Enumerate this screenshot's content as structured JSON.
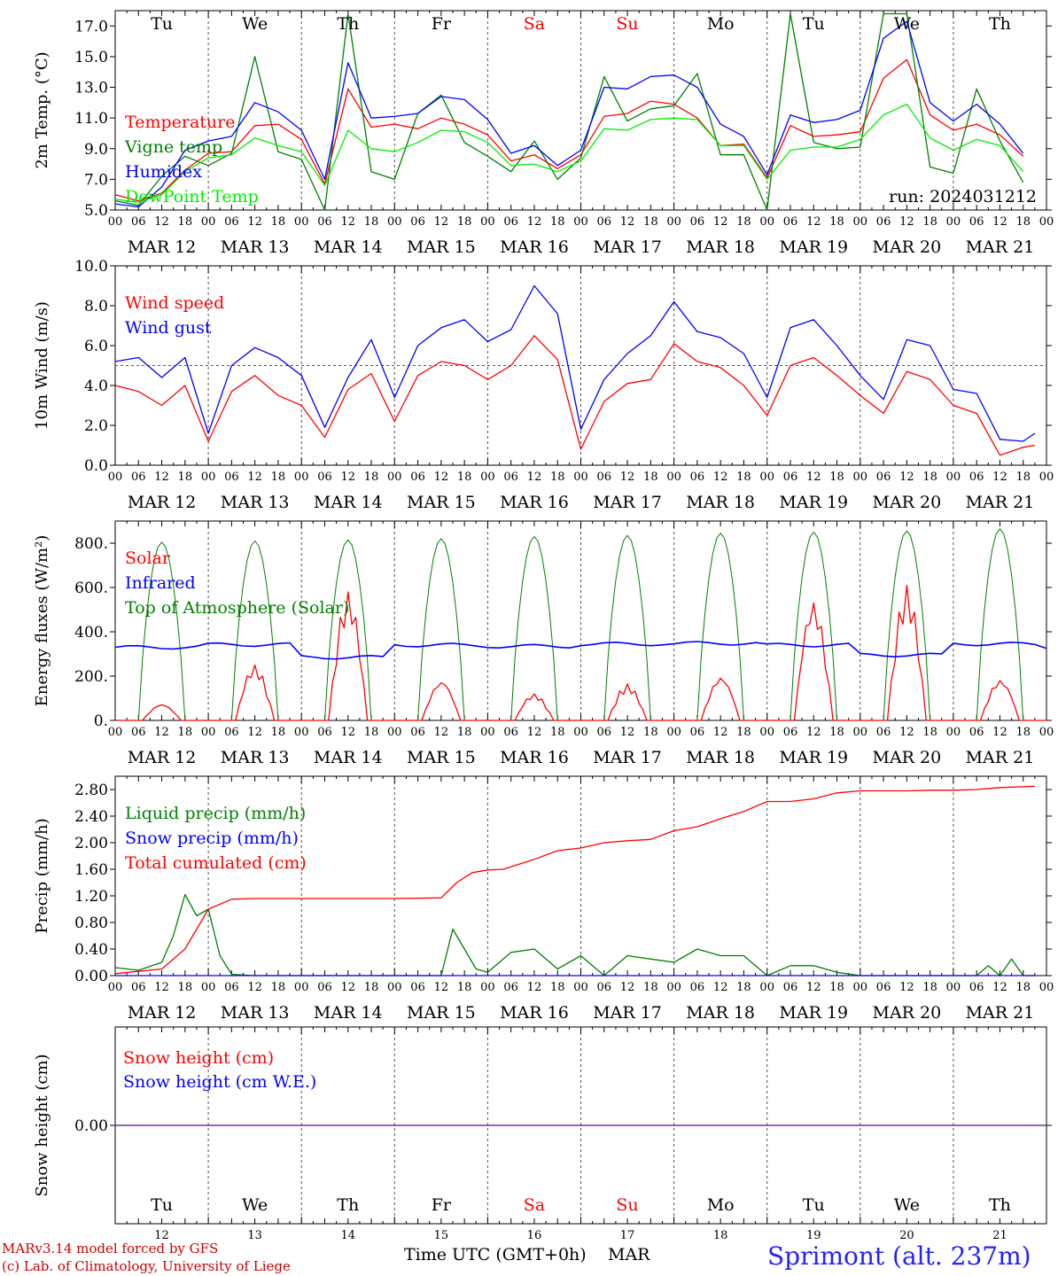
{
  "footer": {
    "model_line": "MARv3.14 model forced by GFS",
    "credit_line": "(c) Lab. of Climatology, University of Liege",
    "axis_title": "Time UTC (GMT+0h)",
    "month": "MAR",
    "station": "Sprimont (alt. 237m)"
  },
  "days": [
    "Tu",
    "We",
    "Th",
    "Fr",
    "Sa",
    "Su",
    "Mo",
    "Tu",
    "We",
    "Th"
  ],
  "weekend_indices": [
    4,
    5
  ],
  "date_labels": [
    "MAR 12",
    "MAR 13",
    "MAR 14",
    "MAR 15",
    "MAR 16",
    "MAR 17",
    "MAR 18",
    "MAR 19",
    "MAR 20",
    "MAR 21"
  ],
  "day_numbers": [
    "12",
    "13",
    "14",
    "15",
    "16",
    "17",
    "18",
    "19",
    "20",
    "21"
  ],
  "hour_ticks": [
    "00",
    "06",
    "12",
    "18"
  ],
  "colors": {
    "red": "#ff0000",
    "green": "#008000",
    "blue": "#0000ff",
    "light_green": "#00ee00",
    "purple": "#7b2f9e",
    "station_blue": "#2222ff",
    "footer_red": "#cc0000",
    "grid": "#555555"
  },
  "chart_data": [
    {
      "id": "temperature",
      "type": "line",
      "ylabel": "2m Temp. (°C)",
      "ylim": [
        5.0,
        18.0
      ],
      "yticks": [
        "5.0",
        "7.0",
        "9.0",
        "11.0",
        "13.0",
        "15.0",
        "17.0"
      ],
      "ytick_values": [
        5,
        7,
        9,
        11,
        13,
        15,
        17
      ],
      "annotation": "run: 2024031212",
      "x_unit": "hours since MAR 12 00 UTC",
      "series": [
        {
          "name": "Temperature",
          "color": "#ff0000",
          "x": [
            0,
            6,
            12,
            18,
            24,
            30,
            36,
            42,
            48,
            54,
            60,
            66,
            72,
            78,
            84,
            90,
            96,
            102,
            108,
            114,
            120,
            126,
            132,
            138,
            144,
            150,
            156,
            162,
            168,
            174,
            180,
            186,
            192,
            198,
            204,
            210,
            216,
            222,
            228,
            234
          ],
          "y": [
            6.0,
            5.6,
            6.1,
            7.6,
            8.7,
            8.8,
            10.5,
            10.6,
            9.6,
            6.7,
            12.9,
            10.4,
            10.6,
            10.3,
            11.0,
            10.6,
            9.9,
            8.2,
            8.6,
            7.7,
            8.6,
            11.1,
            11.3,
            12.1,
            11.9,
            11.0,
            9.2,
            9.3,
            7.1,
            10.5,
            9.8,
            9.9,
            10.1,
            13.6,
            14.8,
            11.2,
            10.2,
            10.6,
            9.9,
            8.5
          ]
        },
        {
          "name": "Vigne temp",
          "color": "#008000",
          "x": [
            0,
            6,
            12,
            18,
            24,
            30,
            36,
            42,
            48,
            54,
            60,
            66,
            72,
            78,
            84,
            90,
            96,
            102,
            108,
            114,
            120,
            126,
            132,
            138,
            144,
            150,
            156,
            162,
            168,
            174,
            180,
            186,
            192,
            198,
            204,
            210,
            216,
            222,
            228,
            234
          ],
          "y": [
            5.6,
            5.3,
            7.2,
            8.5,
            7.9,
            8.7,
            15.0,
            8.8,
            8.3,
            5.0,
            17.8,
            7.5,
            7.0,
            11.3,
            12.5,
            9.4,
            8.5,
            7.5,
            9.5,
            7.0,
            8.4,
            13.7,
            10.8,
            11.6,
            11.8,
            13.9,
            8.6,
            8.6,
            5.0,
            17.8,
            9.4,
            9.0,
            9.1,
            17.8,
            17.8,
            7.8,
            7.4,
            12.9,
            9.5,
            6.8
          ]
        },
        {
          "name": "Humidex",
          "color": "#0000ff",
          "x": [
            0,
            6,
            12,
            18,
            24,
            30,
            36,
            42,
            48,
            54,
            60,
            66,
            72,
            78,
            84,
            90,
            96,
            102,
            108,
            114,
            120,
            126,
            132,
            138,
            144,
            150,
            156,
            162,
            168,
            174,
            180,
            186,
            192,
            198,
            204,
            210,
            216,
            222,
            228,
            234
          ],
          "y": [
            5.4,
            5.2,
            6.5,
            8.9,
            9.5,
            9.8,
            12.0,
            11.4,
            10.2,
            7.0,
            14.6,
            11.0,
            11.1,
            11.3,
            12.4,
            12.2,
            10.9,
            8.7,
            9.2,
            7.9,
            8.9,
            13.0,
            12.9,
            13.7,
            13.8,
            13.0,
            10.6,
            9.8,
            7.3,
            11.2,
            10.7,
            10.9,
            11.5,
            16.2,
            17.3,
            12.0,
            10.8,
            11.9,
            10.6,
            8.7
          ]
        },
        {
          "name": "DewPoint Temp",
          "color": "#00ee00",
          "x": [
            0,
            6,
            12,
            18,
            24,
            30,
            36,
            42,
            48,
            54,
            60,
            66,
            72,
            78,
            84,
            90,
            96,
            102,
            108,
            114,
            120,
            126,
            132,
            138,
            144,
            150,
            156,
            162,
            168,
            174,
            180,
            186,
            192,
            198,
            204,
            210,
            216,
            222,
            228,
            234
          ],
          "y": [
            5.7,
            5.5,
            6.0,
            7.5,
            8.4,
            8.6,
            9.7,
            9.2,
            8.8,
            6.6,
            10.2,
            9.0,
            8.8,
            9.4,
            10.2,
            10.1,
            9.4,
            7.9,
            8.0,
            7.5,
            8.2,
            10.3,
            10.2,
            10.9,
            11.0,
            10.9,
            9.2,
            9.2,
            7.0,
            8.9,
            9.1,
            9.1,
            9.6,
            11.2,
            11.9,
            9.7,
            8.9,
            9.6,
            9.2,
            7.5
          ]
        }
      ]
    },
    {
      "id": "wind",
      "type": "line",
      "ylabel": "10m Wind (m/s)",
      "ylim": [
        0.0,
        10.0
      ],
      "yticks": [
        "0.0",
        "2.0",
        "4.0",
        "6.0",
        "8.0",
        "10.0"
      ],
      "ytick_values": [
        0,
        2,
        4,
        6,
        8,
        10
      ],
      "reference_line": 5.0,
      "x_unit": "hours since MAR 12 00 UTC",
      "series": [
        {
          "name": "Wind speed",
          "color": "#ff0000",
          "x": [
            0,
            6,
            12,
            18,
            24,
            30,
            36,
            42,
            48,
            54,
            60,
            66,
            72,
            78,
            84,
            90,
            96,
            102,
            108,
            114,
            120,
            126,
            132,
            138,
            144,
            150,
            156,
            162,
            168,
            174,
            180,
            186,
            192,
            198,
            204,
            210,
            216,
            222,
            228,
            234,
            237
          ],
          "y": [
            4.0,
            3.7,
            3.0,
            4.0,
            1.2,
            3.7,
            4.5,
            3.5,
            3.0,
            1.4,
            3.8,
            4.6,
            2.2,
            4.5,
            5.2,
            5.0,
            4.3,
            5.0,
            6.5,
            5.3,
            0.8,
            3.2,
            4.1,
            4.3,
            6.1,
            5.2,
            4.9,
            4.0,
            2.5,
            5.0,
            5.4,
            4.5,
            3.5,
            2.6,
            4.7,
            4.3,
            3.0,
            2.6,
            0.5,
            0.9,
            1.0
          ]
        },
        {
          "name": "Wind gust",
          "color": "#0000ff",
          "x": [
            0,
            6,
            12,
            18,
            24,
            30,
            36,
            42,
            48,
            54,
            60,
            66,
            72,
            78,
            84,
            90,
            96,
            102,
            108,
            114,
            120,
            126,
            132,
            138,
            144,
            150,
            156,
            162,
            168,
            174,
            180,
            186,
            192,
            198,
            204,
            210,
            216,
            222,
            228,
            234,
            237
          ],
          "y": [
            5.2,
            5.4,
            4.4,
            5.4,
            1.6,
            5.0,
            5.9,
            5.4,
            4.5,
            1.9,
            4.4,
            6.3,
            3.4,
            6.0,
            6.9,
            7.3,
            6.2,
            6.8,
            9.0,
            7.6,
            1.8,
            4.3,
            5.6,
            6.5,
            8.2,
            6.7,
            6.4,
            5.6,
            3.4,
            6.9,
            7.3,
            6.0,
            4.5,
            3.3,
            6.3,
            6.0,
            3.8,
            3.6,
            1.3,
            1.2,
            1.6
          ]
        }
      ]
    },
    {
      "id": "fluxes",
      "type": "line",
      "ylabel": "Energy fluxes (W/m²)",
      "ylim": [
        0,
        900
      ],
      "yticks": [
        "0.",
        "200.",
        "400.",
        "600.",
        "800."
      ],
      "ytick_values": [
        0,
        200,
        400,
        600,
        800
      ],
      "x_unit": "hours since MAR 12 00 UTC",
      "series": [
        {
          "name": "Solar",
          "color": "#ff0000",
          "daily_peaks": [
            70,
            250,
            580,
            170,
            120,
            165,
            190,
            530,
            610,
            180
          ]
        },
        {
          "name": "Infrared",
          "color": "#0000ff",
          "daily_values": [
            330,
            342,
            285,
            340,
            335,
            345,
            348,
            340,
            295,
            345
          ]
        },
        {
          "name": "Top of Atmosphere (Solar)",
          "color": "#008000",
          "daily_peaks": [
            805,
            810,
            815,
            820,
            830,
            835,
            845,
            850,
            855,
            865
          ]
        }
      ]
    },
    {
      "id": "precip",
      "type": "line",
      "ylabel": "Precip (mm/h)",
      "ylim": [
        0.0,
        3.0
      ],
      "yticks": [
        "0.00",
        "0.40",
        "0.80",
        "1.20",
        "1.60",
        "2.00",
        "2.40",
        "2.80"
      ],
      "ytick_values": [
        0,
        0.4,
        0.8,
        1.2,
        1.6,
        2.0,
        2.4,
        2.8
      ],
      "x_unit": "hours since MAR 12 00 UTC",
      "series": [
        {
          "name": "Liquid precip (mm/h)",
          "color": "#008000",
          "x": [
            0,
            6,
            12,
            15,
            18,
            21,
            24,
            27,
            30,
            36,
            84,
            87,
            90,
            93,
            96,
            102,
            108,
            114,
            120,
            126,
            132,
            138,
            144,
            150,
            156,
            162,
            168,
            174,
            180,
            186,
            192,
            198,
            204,
            210,
            216,
            222,
            225,
            228,
            231,
            234,
            237
          ],
          "y": [
            0.12,
            0.08,
            0.2,
            0.6,
            1.22,
            0.9,
            1.0,
            0.3,
            0.02,
            0.0,
            0.0,
            0.7,
            0.4,
            0.1,
            0.05,
            0.35,
            0.4,
            0.1,
            0.3,
            0.0,
            0.3,
            0.25,
            0.2,
            0.4,
            0.3,
            0.3,
            0.0,
            0.15,
            0.15,
            0.05,
            0.0,
            0.0,
            0.0,
            0.0,
            0.0,
            0.0,
            0.15,
            0.0,
            0.25,
            0.0,
            0.0
          ]
        },
        {
          "name": "Snow precip (mm/h)",
          "color": "#0000ff",
          "x": [
            0,
            237
          ],
          "y": [
            0.0,
            0.0
          ]
        },
        {
          "name": "Total cumulated (cm)",
          "color": "#ff0000",
          "x": [
            0,
            12,
            18,
            24,
            30,
            36,
            48,
            60,
            72,
            84,
            88,
            92,
            96,
            100,
            108,
            114,
            120,
            126,
            132,
            138,
            144,
            150,
            156,
            162,
            168,
            174,
            180,
            186,
            192,
            198,
            204,
            210,
            216,
            222,
            228,
            237
          ],
          "y": [
            0.03,
            0.1,
            0.4,
            1.0,
            1.15,
            1.16,
            1.16,
            1.16,
            1.16,
            1.17,
            1.4,
            1.55,
            1.59,
            1.6,
            1.75,
            1.88,
            1.92,
            2.0,
            2.03,
            2.05,
            2.18,
            2.24,
            2.36,
            2.47,
            2.62,
            2.62,
            2.66,
            2.75,
            2.78,
            2.78,
            2.78,
            2.79,
            2.79,
            2.8,
            2.83,
            2.85
          ]
        }
      ]
    },
    {
      "id": "snow",
      "type": "line",
      "ylabel": "Snow height (cm)",
      "ylim": [
        -1.0,
        1.0
      ],
      "yticks": [
        "0.00"
      ],
      "ytick_values": [
        0
      ],
      "x_unit": "hours since MAR 12 00 UTC",
      "series": [
        {
          "name": "Snow height (cm)",
          "color": "#ff0000",
          "x": [
            0,
            237
          ],
          "y": [
            0.0,
            0.0
          ]
        },
        {
          "name": "Snow height (cm W.E.)",
          "color": "#0000ff",
          "x": [
            0,
            237
          ],
          "y": [
            0.0,
            0.0
          ]
        }
      ]
    }
  ]
}
